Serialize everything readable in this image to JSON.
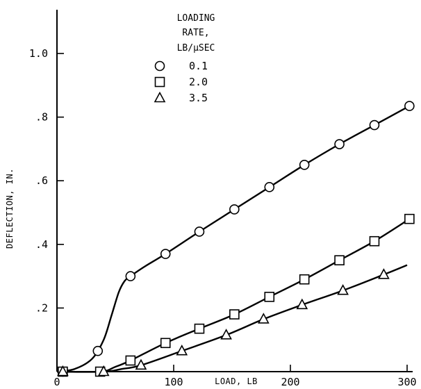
{
  "chart_data": {
    "type": "line",
    "xlabel": "LOAD, LB",
    "ylabel": "DEFLECTION, IN.",
    "xlim": [
      0,
      300
    ],
    "ylim": [
      0,
      1.1
    ],
    "x_ticks": [
      0,
      100,
      200,
      300
    ],
    "x_tick_labels": [
      "0",
      "100",
      "200",
      "300"
    ],
    "y_ticks": [
      0.2,
      0.4,
      0.6,
      0.8,
      1.0
    ],
    "y_tick_labels": [
      ".2",
      ".4",
      ".6",
      ".8",
      "1.0"
    ],
    "grid": false,
    "legend": {
      "title_lines": [
        "LOADING",
        "RATE,",
        "LB/µSEC"
      ],
      "placement": "top-left"
    },
    "series": [
      {
        "name": "0.1",
        "marker": "circle",
        "points": [
          [
            5,
            0
          ],
          [
            35,
            0.065
          ],
          [
            63,
            0.3
          ],
          [
            93,
            0.37
          ],
          [
            122,
            0.44
          ],
          [
            152,
            0.51
          ],
          [
            182,
            0.58
          ],
          [
            212,
            0.65
          ],
          [
            242,
            0.715
          ],
          [
            272,
            0.775
          ],
          [
            302,
            0.835
          ]
        ],
        "curve": [
          [
            0,
            0
          ],
          [
            15,
            0.008
          ],
          [
            30,
            0.04
          ],
          [
            40,
            0.1
          ],
          [
            47,
            0.18
          ],
          [
            53,
            0.25
          ],
          [
            58,
            0.285
          ],
          [
            63,
            0.3
          ],
          [
            75,
            0.33
          ],
          [
            93,
            0.37
          ],
          [
            122,
            0.44
          ],
          [
            152,
            0.51
          ],
          [
            182,
            0.58
          ],
          [
            212,
            0.65
          ],
          [
            242,
            0.715
          ],
          [
            272,
            0.775
          ],
          [
            302,
            0.835
          ]
        ]
      },
      {
        "name": "2.0",
        "marker": "square",
        "points": [
          [
            5,
            0
          ],
          [
            37,
            0
          ],
          [
            63,
            0.035
          ],
          [
            93,
            0.09
          ],
          [
            122,
            0.135
          ],
          [
            152,
            0.18
          ],
          [
            182,
            0.235
          ],
          [
            212,
            0.29
          ],
          [
            242,
            0.35
          ],
          [
            272,
            0.41
          ],
          [
            302,
            0.48
          ]
        ],
        "curve": [
          [
            0,
            0
          ],
          [
            37,
            0
          ],
          [
            50,
            0.015
          ],
          [
            63,
            0.035
          ],
          [
            93,
            0.09
          ],
          [
            122,
            0.135
          ],
          [
            152,
            0.18
          ],
          [
            182,
            0.235
          ],
          [
            212,
            0.29
          ],
          [
            242,
            0.35
          ],
          [
            272,
            0.41
          ],
          [
            302,
            0.48
          ]
        ]
      },
      {
        "name": "3.5",
        "marker": "triangle",
        "points": [
          [
            5,
            0
          ],
          [
            40,
            0
          ],
          [
            72,
            0.02
          ],
          [
            107,
            0.065
          ],
          [
            145,
            0.115
          ],
          [
            177,
            0.165
          ],
          [
            210,
            0.21
          ],
          [
            245,
            0.255
          ],
          [
            280,
            0.305
          ]
        ],
        "curve": [
          [
            0,
            0
          ],
          [
            40,
            0
          ],
          [
            55,
            0.008
          ],
          [
            72,
            0.02
          ],
          [
            107,
            0.065
          ],
          [
            145,
            0.115
          ],
          [
            177,
            0.165
          ],
          [
            210,
            0.21
          ],
          [
            245,
            0.255
          ],
          [
            280,
            0.305
          ],
          [
            300,
            0.335
          ]
        ]
      }
    ]
  }
}
